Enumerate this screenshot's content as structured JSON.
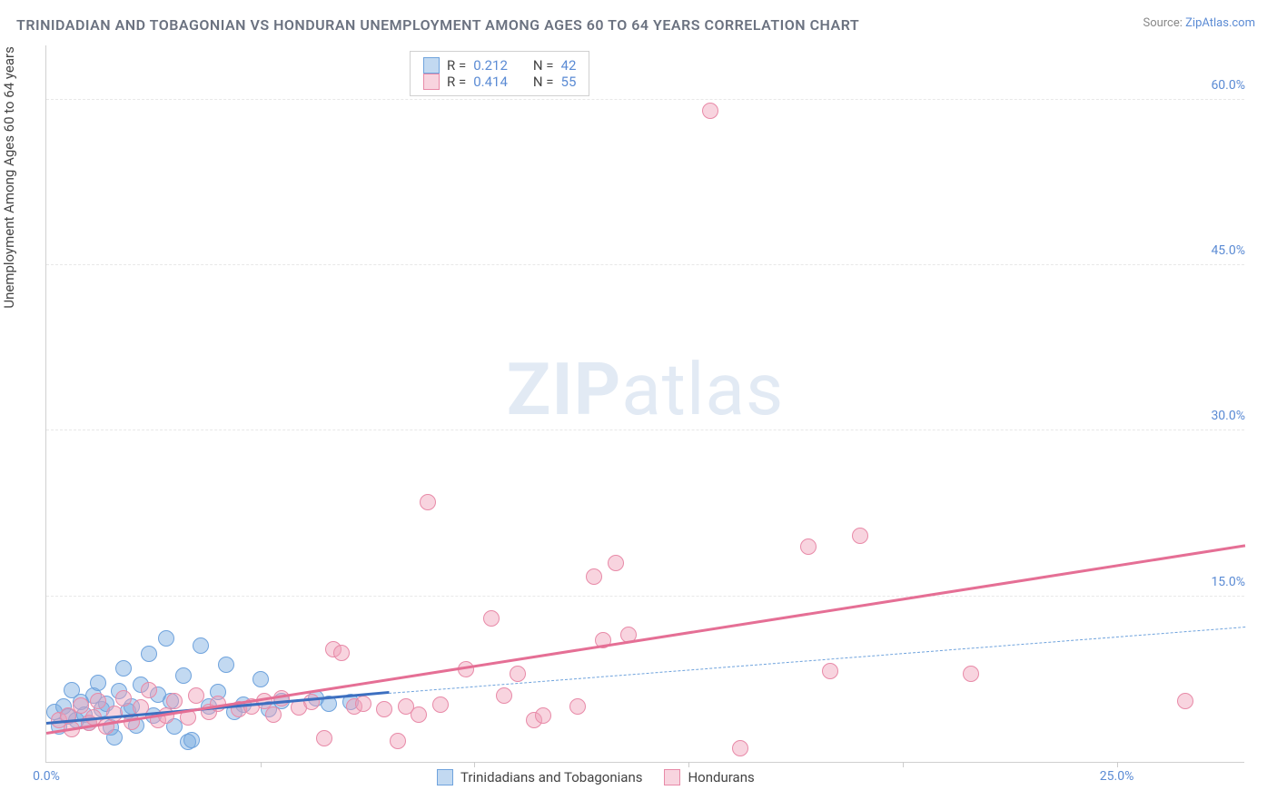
{
  "title": "TRINIDADIAN AND TOBAGONIAN VS HONDURAN UNEMPLOYMENT AMONG AGES 60 TO 64 YEARS CORRELATION CHART",
  "source_prefix": "Source: ",
  "source_link": "ZipAtlas.com",
  "ylabel": "Unemployment Among Ages 60 to 64 years",
  "watermark_zip": "ZIP",
  "watermark_atlas": "atlas",
  "chart": {
    "type": "scatter",
    "xlim": [
      0,
      28
    ],
    "ylim": [
      0,
      65
    ],
    "yticks": [
      {
        "v": 15.0,
        "label": "15.0%"
      },
      {
        "v": 30.0,
        "label": "30.0%"
      },
      {
        "v": 45.0,
        "label": "45.0%"
      },
      {
        "v": 60.0,
        "label": "60.0%"
      }
    ],
    "xticks": [
      {
        "v": 0.0,
        "label": "0.0%"
      },
      {
        "v": 25.0,
        "label": "25.0%"
      }
    ],
    "xtick_marks": [
      5,
      10,
      15,
      20,
      25
    ],
    "background_color": "#ffffff",
    "grid_color": "#e8e8e8",
    "series": [
      {
        "name": "Trinidadians and Tobagonians",
        "fill": "rgba(120,170,225,0.45)",
        "stroke": "#6fa3dd",
        "r_value": "0.212",
        "n_value": "42",
        "trend": {
          "x1": 0,
          "y1": 3.4,
          "x2": 8.0,
          "y2": 6.2,
          "color": "#3c6fc0",
          "solid": true
        },
        "trend_ext": {
          "x1": 8.0,
          "y1": 6.2,
          "x2": 28.0,
          "y2": 12.2,
          "color": "#6fa3dd"
        },
        "points": [
          [
            0.2,
            4.5
          ],
          [
            0.3,
            3.2
          ],
          [
            0.4,
            5.0
          ],
          [
            0.5,
            4.1
          ],
          [
            0.6,
            6.5
          ],
          [
            0.7,
            3.8
          ],
          [
            0.8,
            5.4
          ],
          [
            0.9,
            4.3
          ],
          [
            1.0,
            3.5
          ],
          [
            1.1,
            6.0
          ],
          [
            1.2,
            7.2
          ],
          [
            1.3,
            4.8
          ],
          [
            1.4,
            5.3
          ],
          [
            1.5,
            3.1
          ],
          [
            1.6,
            2.2
          ],
          [
            1.7,
            6.4
          ],
          [
            1.8,
            8.5
          ],
          [
            1.9,
            4.6
          ],
          [
            2.0,
            5.0
          ],
          [
            2.1,
            3.3
          ],
          [
            2.2,
            7.0
          ],
          [
            2.4,
            9.8
          ],
          [
            2.5,
            4.2
          ],
          [
            2.6,
            6.1
          ],
          [
            2.8,
            11.2
          ],
          [
            2.9,
            5.5
          ],
          [
            3.0,
            3.2
          ],
          [
            3.2,
            7.8
          ],
          [
            3.3,
            1.8
          ],
          [
            3.4,
            2.0
          ],
          [
            3.6,
            10.5
          ],
          [
            3.8,
            5.0
          ],
          [
            4.0,
            6.3
          ],
          [
            4.2,
            8.8
          ],
          [
            4.4,
            4.5
          ],
          [
            4.6,
            5.2
          ],
          [
            5.0,
            7.5
          ],
          [
            5.2,
            4.8
          ],
          [
            5.5,
            5.5
          ],
          [
            6.3,
            5.8
          ],
          [
            6.6,
            5.3
          ],
          [
            7.1,
            5.4
          ]
        ]
      },
      {
        "name": "Hondurans",
        "fill": "rgba(240,160,185,0.45)",
        "stroke": "#e88aa8",
        "r_value": "0.414",
        "n_value": "55",
        "trend": {
          "x1": 0,
          "y1": 2.5,
          "x2": 28.0,
          "y2": 19.5,
          "color": "#e56f95",
          "solid": true
        },
        "points": [
          [
            0.3,
            3.8
          ],
          [
            0.5,
            4.2
          ],
          [
            0.6,
            3.0
          ],
          [
            0.8,
            5.1
          ],
          [
            1.0,
            3.5
          ],
          [
            1.1,
            4.0
          ],
          [
            1.2,
            5.5
          ],
          [
            1.4,
            3.2
          ],
          [
            1.6,
            4.4
          ],
          [
            1.8,
            5.8
          ],
          [
            2.0,
            3.6
          ],
          [
            2.2,
            4.9
          ],
          [
            2.4,
            6.5
          ],
          [
            2.6,
            3.8
          ],
          [
            2.8,
            4.2
          ],
          [
            3.0,
            5.5
          ],
          [
            3.3,
            4.0
          ],
          [
            3.5,
            6.0
          ],
          [
            3.8,
            4.5
          ],
          [
            4.0,
            5.3
          ],
          [
            4.5,
            4.8
          ],
          [
            4.8,
            5.0
          ],
          [
            5.1,
            5.5
          ],
          [
            5.3,
            4.3
          ],
          [
            5.5,
            5.8
          ],
          [
            5.9,
            4.9
          ],
          [
            6.2,
            5.4
          ],
          [
            6.5,
            2.1
          ],
          [
            6.7,
            10.2
          ],
          [
            6.9,
            9.9
          ],
          [
            7.2,
            5.0
          ],
          [
            7.4,
            5.3
          ],
          [
            7.9,
            4.8
          ],
          [
            8.2,
            1.9
          ],
          [
            8.4,
            5.0
          ],
          [
            8.7,
            4.3
          ],
          [
            8.9,
            23.5
          ],
          [
            9.2,
            5.2
          ],
          [
            9.8,
            8.4
          ],
          [
            10.4,
            13.0
          ],
          [
            10.7,
            6.0
          ],
          [
            11.0,
            8.0
          ],
          [
            11.4,
            3.8
          ],
          [
            11.6,
            4.2
          ],
          [
            12.4,
            5.0
          ],
          [
            12.8,
            16.8
          ],
          [
            13.0,
            11.0
          ],
          [
            13.3,
            18.0
          ],
          [
            13.6,
            11.5
          ],
          [
            15.5,
            59.0
          ],
          [
            16.2,
            1.2
          ],
          [
            17.8,
            19.5
          ],
          [
            18.3,
            8.2
          ],
          [
            19.0,
            20.5
          ],
          [
            21.6,
            8.0
          ],
          [
            26.6,
            5.5
          ]
        ]
      }
    ]
  },
  "legend": {
    "stats_labels": {
      "R": "R =",
      "N": "N ="
    },
    "bottom": [
      {
        "label": "Trinidadians and Tobagonians",
        "fill": "rgba(120,170,225,0.45)",
        "stroke": "#6fa3dd"
      },
      {
        "label": "Hondurans",
        "fill": "rgba(240,160,185,0.45)",
        "stroke": "#e88aa8"
      }
    ]
  }
}
